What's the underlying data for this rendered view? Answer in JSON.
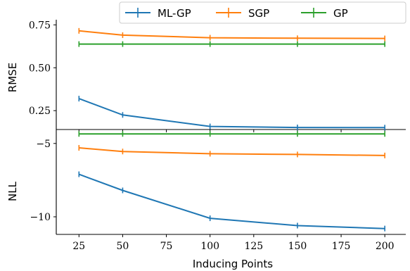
{
  "chart_data": [
    {
      "type": "line",
      "title": "",
      "xlabel": "Inducing Points",
      "ylabel": "RMSE",
      "x": [
        25,
        50,
        100,
        150,
        200
      ],
      "xlim": [
        12,
        212
      ],
      "ylim": [
        0.14,
        0.78
      ],
      "yticks": [
        0.25,
        0.5,
        0.75
      ],
      "ytick_labels": [
        "0.25",
        "0.50",
        "0.75"
      ],
      "grid": false,
      "series": [
        {
          "name": "ML-GP",
          "values": [
            0.32,
            0.225,
            0.158,
            0.152,
            0.151
          ],
          "color": "#1f77b4"
        },
        {
          "name": "SGP",
          "values": [
            0.715,
            0.69,
            0.675,
            0.672,
            0.671
          ],
          "color": "#ff7f0e"
        },
        {
          "name": "GP",
          "values": [
            0.638,
            0.638,
            0.638,
            0.638,
            0.638
          ],
          "color": "#2ca02c"
        }
      ]
    },
    {
      "type": "line",
      "title": "",
      "xlabel": "Inducing Points",
      "ylabel": "NLL",
      "x": [
        25,
        50,
        100,
        150,
        200
      ],
      "xlim": [
        12,
        212
      ],
      "ylim": [
        -11.2,
        -4.05
      ],
      "yticks": [
        -5,
        -10
      ],
      "ytick_labels": [
        "−5",
        "−10"
      ],
      "xticks": [
        25,
        50,
        75,
        100,
        125,
        150,
        175,
        200
      ],
      "xtick_labels": [
        "25",
        "50",
        "75",
        "100",
        "125",
        "150",
        "175",
        "200"
      ],
      "grid": false,
      "series": [
        {
          "name": "ML-GP",
          "values": [
            -7.1,
            -8.2,
            -10.1,
            -10.6,
            -10.8
          ],
          "color": "#1f77b4"
        },
        {
          "name": "SGP",
          "values": [
            -5.3,
            -5.55,
            -5.7,
            -5.75,
            -5.82
          ],
          "color": "#ff7f0e"
        },
        {
          "name": "GP",
          "values": [
            -4.35,
            -4.35,
            -4.35,
            -4.35,
            -4.35
          ],
          "color": "#2ca02c"
        }
      ]
    }
  ],
  "legend": {
    "placement": "top-right",
    "entries": [
      {
        "label": "ML-GP",
        "color": "#1f77b4"
      },
      {
        "label": "SGP",
        "color": "#ff7f0e"
      },
      {
        "label": "GP",
        "color": "#2ca02c"
      }
    ]
  }
}
